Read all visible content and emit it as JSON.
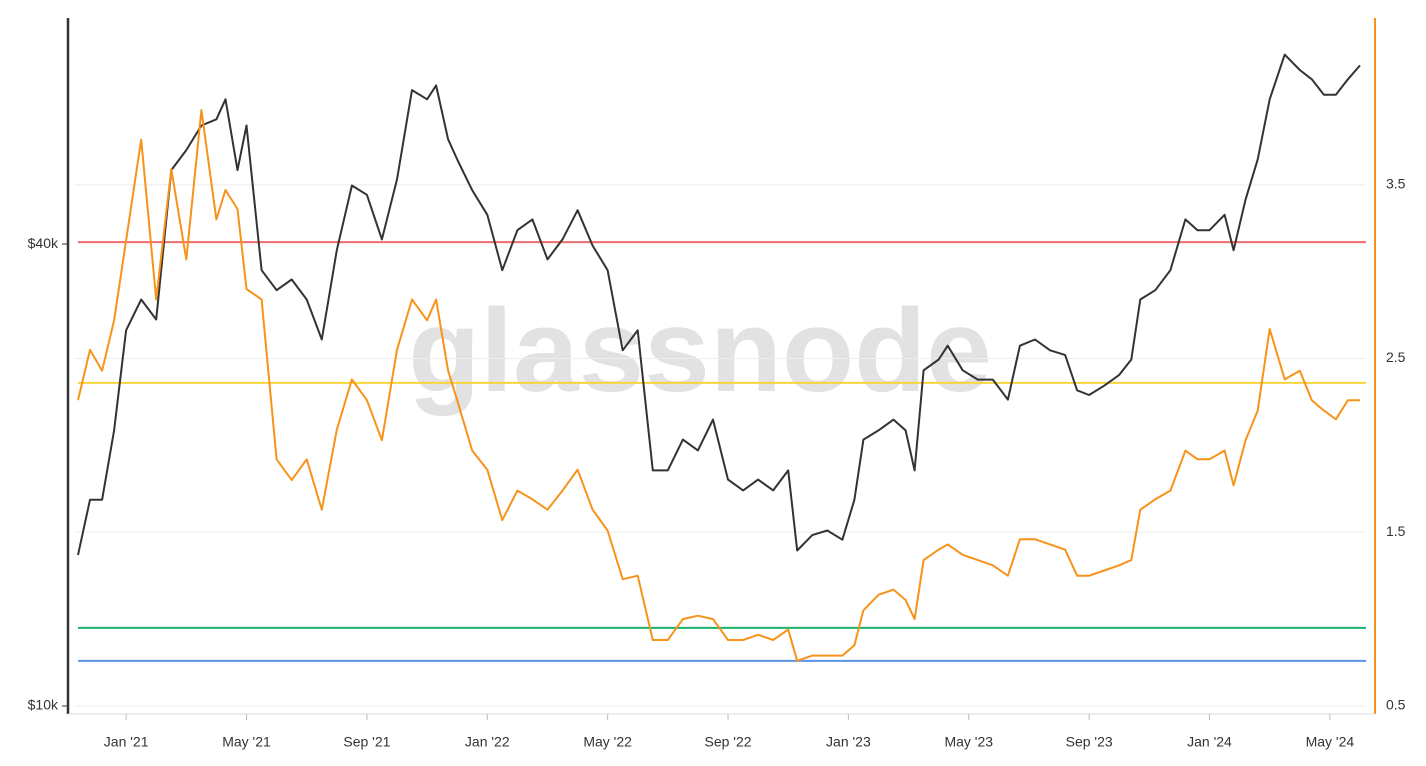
{
  "chart_data": {
    "type": "line",
    "watermark": "glassnode",
    "x": [
      -1.6,
      -1.2,
      -0.8,
      -0.4,
      0,
      0.5,
      1,
      1.5,
      2,
      2.5,
      3,
      3.3,
      3.7,
      4,
      4.5,
      5,
      5.5,
      6,
      6.5,
      7,
      7.5,
      8,
      8.5,
      9,
      9.5,
      10,
      10.3,
      10.7,
      11,
      11.5,
      12,
      12.5,
      13,
      13.5,
      14,
      14.5,
      15,
      15.5,
      16,
      16.5,
      17,
      17.5,
      18,
      18.5,
      19,
      19.5,
      20,
      20.5,
      21,
      21.5,
      22,
      22.3,
      22.8,
      23.3,
      23.8,
      24.2,
      24.5,
      25,
      25.5,
      25.9,
      26.2,
      26.5,
      27,
      27.3,
      27.8,
      28.3,
      28.8,
      29.3,
      29.7,
      30.2,
      30.7,
      31.2,
      31.6,
      32,
      32.5,
      33,
      33.4,
      33.7,
      34.2,
      34.7,
      35.2,
      35.6,
      36,
      36.5,
      36.8,
      37.2,
      37.6,
      38,
      38.5,
      39,
      39.4,
      39.8,
      40.2,
      40.6,
      41
    ],
    "xlim": [
      -1.6,
      41.2
    ],
    "xticks": [
      {
        "value": 0,
        "label": "Jan '21"
      },
      {
        "value": 4,
        "label": "May '21"
      },
      {
        "value": 8,
        "label": "Sep '21"
      },
      {
        "value": 12,
        "label": "Jan '22"
      },
      {
        "value": 16,
        "label": "May '22"
      },
      {
        "value": 20,
        "label": "Sep '22"
      },
      {
        "value": 24,
        "label": "Jan '23"
      },
      {
        "value": 28,
        "label": "May '23"
      },
      {
        "value": 32,
        "label": "Sep '23"
      },
      {
        "value": 36,
        "label": "Jan '24"
      },
      {
        "value": 40,
        "label": "May '24"
      }
    ],
    "ylim": [
      10000,
      54680
    ],
    "yticks": [
      {
        "value": 10000,
        "label": "$10k"
      },
      {
        "value": 40000,
        "label": "$40k"
      }
    ],
    "y2lim": [
      0.5,
      4.46
    ],
    "y2ticks": [
      0.5,
      1.5,
      2.5,
      3.5
    ],
    "grid": true,
    "series": [
      {
        "color": "#333333",
        "axis": "y",
        "values": [
          19800,
          23400,
          23400,
          27900,
          34400,
          36400,
          35100,
          44800,
          46100,
          47700,
          48100,
          49400,
          44800,
          47700,
          38300,
          37000,
          37700,
          36400,
          33800,
          39600,
          43800,
          43200,
          40300,
          44200,
          50000,
          49400,
          50300,
          46800,
          45500,
          43500,
          41900,
          38300,
          40900,
          41600,
          39000,
          40300,
          42200,
          39900,
          38300,
          33100,
          34400,
          25300,
          25300,
          27300,
          26600,
          28600,
          24700,
          24000,
          24700,
          24000,
          25300,
          20100,
          21100,
          21400,
          20800,
          23400,
          27300,
          27900,
          28600,
          27900,
          25300,
          31800,
          32500,
          33400,
          31800,
          31200,
          31200,
          29900,
          33400,
          33800,
          33100,
          32800,
          30500,
          30200,
          30800,
          31500,
          32500,
          36400,
          37000,
          38300,
          41600,
          40900,
          40900,
          41900,
          39600,
          42900,
          45500,
          49400,
          52300,
          51300,
          50700,
          49700,
          49700,
          50700,
          51600
        ]
      },
      {
        "color": "#f7931a",
        "axis": "y2",
        "values": [
          2.26,
          2.55,
          2.43,
          2.72,
          3.18,
          3.76,
          2.84,
          3.59,
          3.07,
          3.93,
          3.3,
          3.47,
          3.36,
          2.9,
          2.84,
          1.92,
          1.8,
          1.92,
          1.63,
          2.09,
          2.38,
          2.26,
          2.03,
          2.55,
          2.84,
          2.72,
          2.84,
          2.43,
          2.26,
          1.97,
          1.86,
          1.57,
          1.74,
          1.69,
          1.63,
          1.74,
          1.86,
          1.63,
          1.51,
          1.23,
          1.25,
          0.88,
          0.88,
          1.0,
          1.02,
          1.0,
          0.88,
          0.88,
          0.91,
          0.88,
          0.94,
          0.76,
          0.79,
          0.79,
          0.79,
          0.85,
          1.05,
          1.14,
          1.17,
          1.11,
          1.0,
          1.34,
          1.4,
          1.43,
          1.37,
          1.34,
          1.31,
          1.25,
          1.46,
          1.46,
          1.43,
          1.4,
          1.25,
          1.25,
          1.28,
          1.31,
          1.34,
          1.63,
          1.69,
          1.74,
          1.97,
          1.92,
          1.92,
          1.97,
          1.77,
          2.03,
          2.2,
          2.67,
          2.38,
          2.43,
          2.26,
          2.2,
          2.15,
          2.26,
          2.26
        ]
      }
    ],
    "reference_lines": [
      {
        "value": 3.17,
        "color": "#f06b6b",
        "axis": "y2"
      },
      {
        "value": 2.36,
        "color": "#f5d63d",
        "axis": "y2"
      },
      {
        "value": 0.95,
        "color": "#1bb36b",
        "axis": "y2"
      },
      {
        "value": 0.76,
        "color": "#5b93e6",
        "axis": "y2"
      }
    ]
  }
}
